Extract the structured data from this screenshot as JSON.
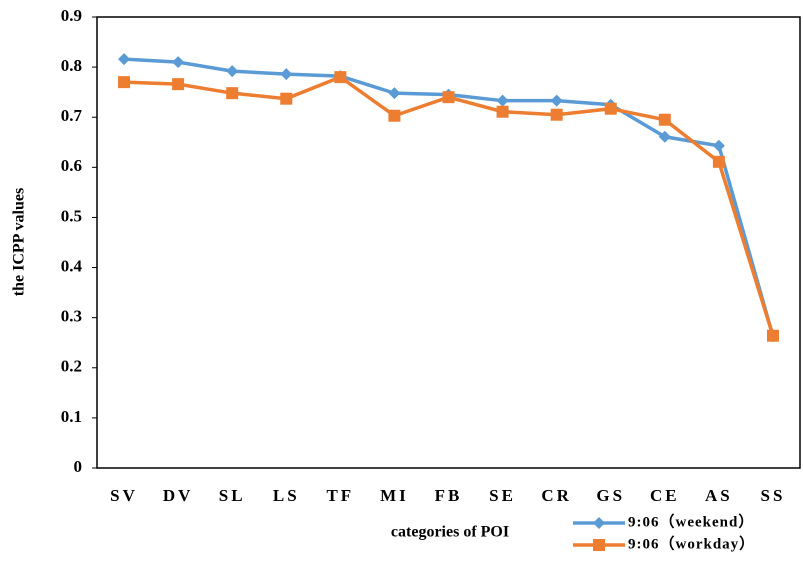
{
  "chart_data": {
    "type": "line",
    "y_label": "the ICPP values",
    "x_label": "categories of POI",
    "categories": [
      "SV",
      "DV",
      "SL",
      "LS",
      "TF",
      "MI",
      "FB",
      "SE",
      "CR",
      "GS",
      "CE",
      "AS",
      "SS"
    ],
    "series": [
      {
        "name": "9:06（weekend）",
        "color": "#5b9bd5",
        "marker": "diamond",
        "values": [
          0.816,
          0.81,
          0.792,
          0.786,
          0.782,
          0.748,
          0.745,
          0.733,
          0.733,
          0.725,
          0.661,
          0.643,
          0.263
        ]
      },
      {
        "name": "9:06（workday）",
        "color": "#ed7d31",
        "marker": "square",
        "values": [
          0.77,
          0.766,
          0.748,
          0.737,
          0.78,
          0.703,
          0.74,
          0.711,
          0.705,
          0.717,
          0.695,
          0.611,
          0.264
        ]
      }
    ],
    "ylim": [
      0,
      0.9
    ],
    "yticks": [
      0,
      0.1,
      0.2,
      0.3,
      0.4,
      0.5,
      0.6,
      0.7,
      0.8,
      0.9
    ],
    "grid": false,
    "legend": "bottom-right"
  }
}
